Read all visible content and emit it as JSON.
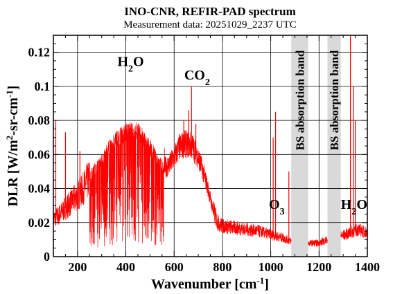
{
  "chart_data": {
    "type": "line",
    "title": "INO-CNR, REFIR-PAD spectrum",
    "subtitle": "Measurement data: 20251029_2237 UTC",
    "xlabel": "Wavenumber [cm",
    "xlabel_sup": "-1",
    "xlabel_end": "]",
    "ylabel": "DLR [W/m",
    "ylabel_sup": "2",
    "ylabel_mid": "-sr-cm",
    "ylabel_sup2": "-1",
    "ylabel_end": "]",
    "xlim": [
      100,
      1400
    ],
    "ylim": [
      0,
      0.13
    ],
    "x_ticks": [
      200,
      400,
      600,
      800,
      1000,
      1200,
      1400
    ],
    "y_ticks": [
      0,
      0.02,
      0.04,
      0.06,
      0.08,
      0.1,
      0.12
    ],
    "y_tick_labels": [
      "0",
      "0.02",
      "0.04",
      "0.06",
      "0.08",
      "0.1",
      "0.12"
    ],
    "grid": true,
    "series_color": "#ff0000",
    "band_color": "#d9d9d9",
    "bands": [
      {
        "x0": 1085,
        "x1": 1155,
        "label": "BS absorption band"
      },
      {
        "x0": 1235,
        "x1": 1290,
        "label": "BS absorption band"
      }
    ],
    "annotations": [
      {
        "main": "H",
        "sub": "2",
        "tail": "O",
        "x": 420,
        "y": 0.112
      },
      {
        "main": "CO",
        "sub": "2",
        "tail": "",
        "x": 695,
        "y": 0.104
      },
      {
        "main": "O",
        "sub": "3",
        "tail": "",
        "x": 1025,
        "y": 0.028
      },
      {
        "main": "H",
        "sub": "2",
        "tail": "O",
        "x": 1345,
        "y": 0.028
      }
    ],
    "series": [
      {
        "envelope": [
          [
            100,
            0.022
          ],
          [
            120,
            0.024
          ],
          [
            140,
            0.027
          ],
          [
            160,
            0.03
          ],
          [
            180,
            0.033
          ],
          [
            200,
            0.036
          ],
          [
            220,
            0.039
          ],
          [
            240,
            0.044
          ],
          [
            260,
            0.049
          ],
          [
            280,
            0.053
          ],
          [
            300,
            0.056
          ],
          [
            320,
            0.061
          ],
          [
            340,
            0.066
          ],
          [
            360,
            0.069
          ],
          [
            380,
            0.071
          ],
          [
            400,
            0.073
          ],
          [
            420,
            0.074
          ],
          [
            440,
            0.074
          ],
          [
            460,
            0.072
          ],
          [
            480,
            0.068
          ],
          [
            500,
            0.064
          ],
          [
            520,
            0.06
          ],
          [
            540,
            0.055
          ],
          [
            560,
            0.052
          ],
          [
            580,
            0.054
          ],
          [
            600,
            0.058
          ],
          [
            620,
            0.064
          ],
          [
            640,
            0.066
          ],
          [
            660,
            0.066
          ],
          [
            680,
            0.064
          ],
          [
            700,
            0.058
          ],
          [
            720,
            0.05
          ],
          [
            740,
            0.04
          ],
          [
            760,
            0.028
          ],
          [
            780,
            0.02
          ],
          [
            800,
            0.018
          ],
          [
            850,
            0.017
          ],
          [
            900,
            0.016
          ],
          [
            950,
            0.015
          ],
          [
            1000,
            0.013
          ],
          [
            1050,
            0.011
          ],
          [
            1085,
            0.009
          ],
          [
            1155,
            0.008
          ],
          [
            1200,
            0.008
          ],
          [
            1235,
            0.01
          ],
          [
            1290,
            0.012
          ],
          [
            1330,
            0.014
          ],
          [
            1360,
            0.016
          ],
          [
            1400,
            0.014
          ]
        ],
        "spikes": [
          [
            110,
            0.08
          ],
          [
            150,
            0.073
          ],
          [
            210,
            0.062
          ],
          [
            640,
            0.08
          ],
          [
            660,
            0.086
          ],
          [
            672,
            0.1
          ],
          [
            690,
            0.078
          ],
          [
            1010,
            0.07
          ],
          [
            1020,
            0.085
          ],
          [
            1075,
            0.05
          ],
          [
            1330,
            0.13
          ],
          [
            1342,
            0.1
          ],
          [
            1350,
            0.08
          ]
        ]
      }
    ]
  }
}
